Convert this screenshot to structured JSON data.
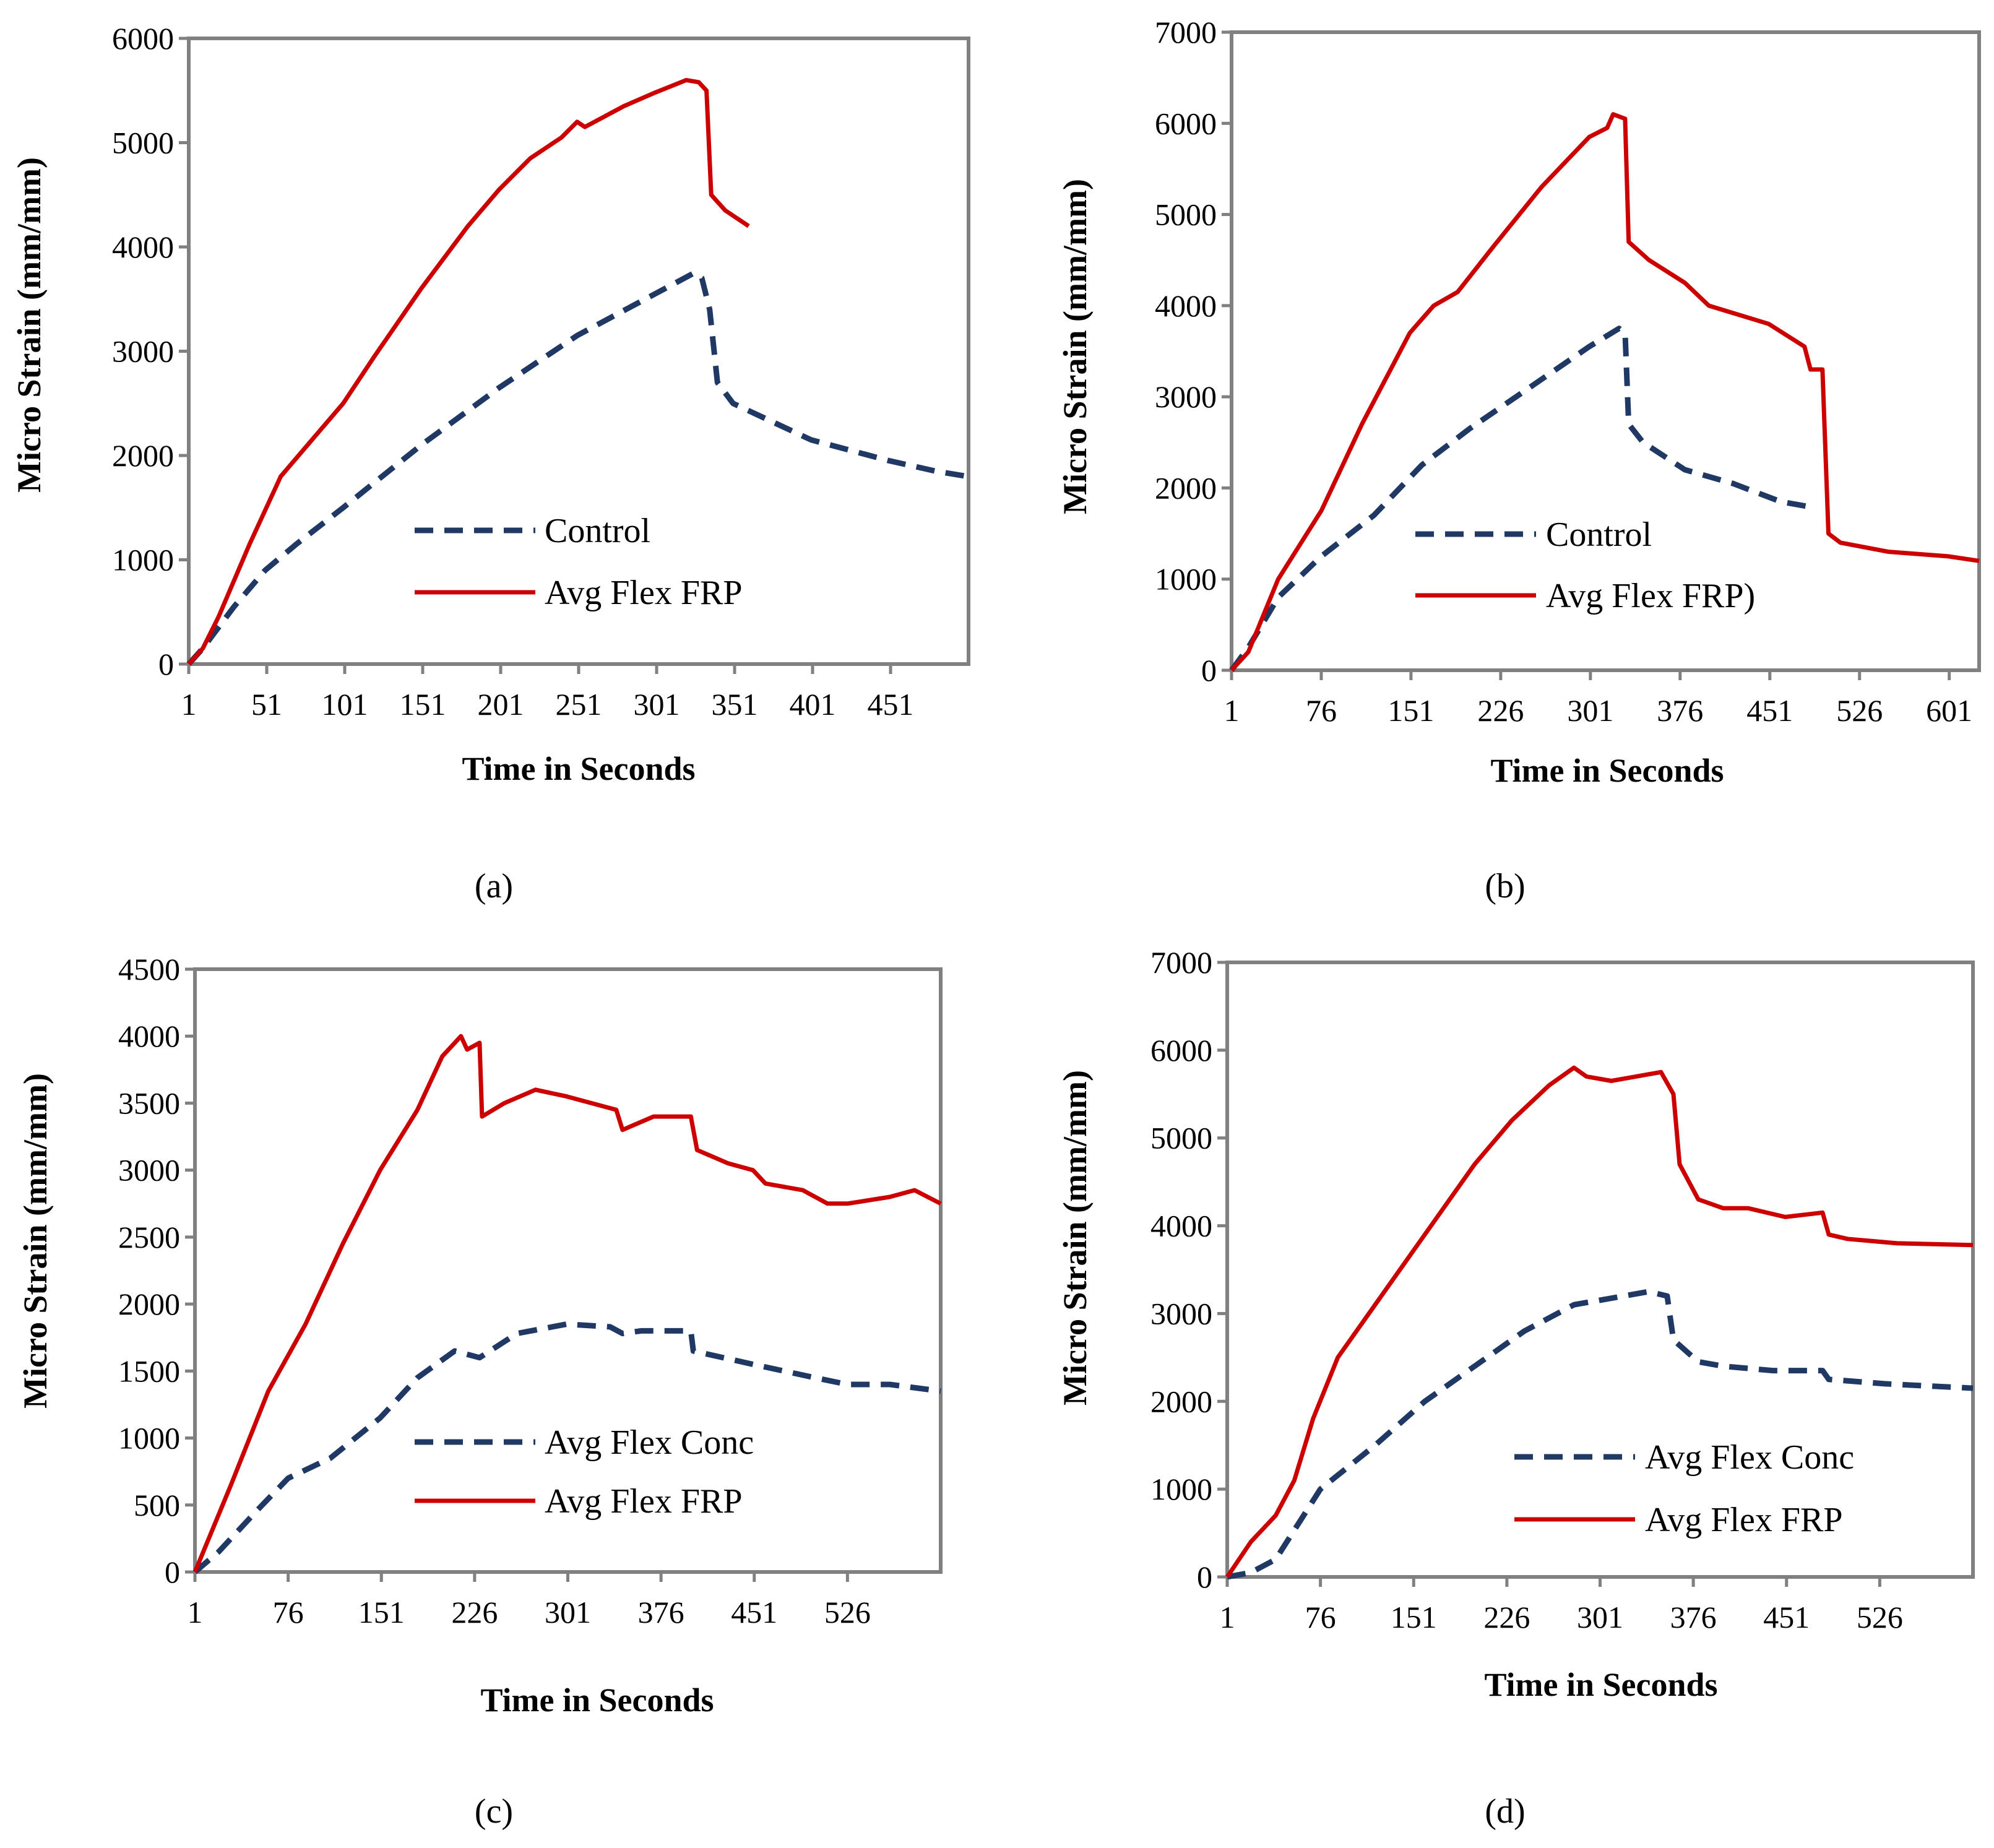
{
  "colors": {
    "control": "#1f3864",
    "frp": "#cc0000",
    "axis": "#808080"
  },
  "chart_data": [
    {
      "panel": "a",
      "caption": "(a)",
      "type": "line",
      "xlabel": "Time in Seconds",
      "ylabel": "Micro Strain (mm/mm)",
      "xlim": [
        1,
        501
      ],
      "ylim": [
        0,
        6000
      ],
      "xticks": [
        "1",
        "51",
        "101",
        "151",
        "201",
        "251",
        "301",
        "351",
        "401",
        "451"
      ],
      "xtick_values": [
        1,
        51,
        101,
        151,
        201,
        251,
        301,
        351,
        401,
        451
      ],
      "yticks": [
        "0",
        "1000",
        "2000",
        "3000",
        "4000",
        "5000",
        "6000"
      ],
      "ytick_values": [
        0,
        1000,
        2000,
        3000,
        4000,
        5000,
        6000
      ],
      "legend": [
        "Control",
        "Avg Flex FRP"
      ],
      "series": [
        {
          "name": "Control",
          "style": "dashed",
          "x": [
            1,
            10,
            30,
            50,
            70,
            100,
            150,
            200,
            250,
            300,
            325,
            330,
            335,
            340,
            350,
            400,
            450,
            480,
            500
          ],
          "y": [
            0,
            150,
            550,
            900,
            1150,
            1500,
            2100,
            2650,
            3150,
            3550,
            3750,
            3700,
            3400,
            2700,
            2500,
            2150,
            1950,
            1850,
            1800
          ]
        },
        {
          "name": "Avg Flex FRP",
          "style": "solid",
          "x": [
            1,
            10,
            20,
            40,
            60,
            80,
            100,
            120,
            150,
            180,
            200,
            220,
            240,
            250,
            255,
            280,
            300,
            320,
            328,
            333,
            336,
            345,
            360
          ],
          "y": [
            0,
            150,
            450,
            1150,
            1800,
            2150,
            2500,
            2950,
            3600,
            4200,
            4550,
            4850,
            5050,
            5200,
            5150,
            5350,
            5480,
            5600,
            5580,
            5500,
            4500,
            4350,
            4200
          ]
        }
      ]
    },
    {
      "panel": "b",
      "caption": "(b)",
      "type": "line",
      "xlabel": "Time in Seconds",
      "ylabel": "Micro Strain (mm/mm)",
      "xlim": [
        1,
        626
      ],
      "ylim": [
        0,
        7000
      ],
      "xticks": [
        "1",
        "76",
        "151",
        "226",
        "301",
        "376",
        "451",
        "526",
        "601"
      ],
      "xtick_values": [
        1,
        76,
        151,
        226,
        301,
        376,
        451,
        526,
        601
      ],
      "yticks": [
        "0",
        "1000",
        "2000",
        "3000",
        "4000",
        "5000",
        "6000",
        "7000"
      ],
      "ytick_values": [
        0,
        1000,
        2000,
        3000,
        4000,
        5000,
        6000,
        7000
      ],
      "legend": [
        "Control",
        "Avg Flex FRP)"
      ],
      "series": [
        {
          "name": "Control",
          "style": "dashed",
          "x": [
            1,
            15,
            40,
            76,
            120,
            160,
            200,
            250,
            300,
            325,
            330,
            333,
            345,
            380,
            420,
            460,
            490
          ],
          "y": [
            0,
            250,
            800,
            1250,
            1700,
            2250,
            2650,
            3100,
            3550,
            3750,
            3700,
            2700,
            2500,
            2200,
            2050,
            1850,
            1780
          ]
        },
        {
          "name": "Avg Flex FRP)",
          "style": "solid",
          "x": [
            1,
            15,
            40,
            76,
            110,
            150,
            170,
            190,
            220,
            260,
            300,
            315,
            320,
            330,
            333,
            350,
            380,
            400,
            450,
            480,
            485,
            495,
            500,
            510,
            550,
            600,
            626
          ],
          "y": [
            0,
            200,
            1000,
            1750,
            2700,
            3700,
            4000,
            4150,
            4650,
            5300,
            5850,
            5950,
            6100,
            6050,
            4700,
            4500,
            4250,
            4000,
            3800,
            3550,
            3300,
            3300,
            1500,
            1400,
            1300,
            1250,
            1200
          ]
        }
      ]
    },
    {
      "panel": "c",
      "caption": "(c)",
      "type": "line",
      "xlabel": "Time in Seconds",
      "ylabel": "Micro Strain (mm/mm)",
      "xlim": [
        1,
        601
      ],
      "ylim": [
        0,
        4500
      ],
      "xticks": [
        "1",
        "76",
        "151",
        "226",
        "301",
        "376",
        "451",
        "526"
      ],
      "xtick_values": [
        1,
        76,
        151,
        226,
        301,
        376,
        451,
        526
      ],
      "yticks": [
        "0",
        "500",
        "1000",
        "1500",
        "2000",
        "2500",
        "3000",
        "3500",
        "4000",
        "4500"
      ],
      "ytick_values": [
        0,
        500,
        1000,
        1500,
        2000,
        2500,
        3000,
        3500,
        4000,
        4500
      ],
      "legend": [
        "Avg Flex Conc",
        "Avg Flex FRP"
      ],
      "series": [
        {
          "name": "Avg Flex Conc",
          "style": "dashed",
          "x": [
            1,
            20,
            50,
            76,
            110,
            150,
            180,
            210,
            230,
            260,
            300,
            335,
            345,
            360,
            400,
            402,
            450,
            500,
            526,
            560,
            601
          ],
          "y": [
            0,
            150,
            450,
            700,
            850,
            1150,
            1450,
            1650,
            1600,
            1780,
            1850,
            1830,
            1780,
            1800,
            1800,
            1650,
            1550,
            1450,
            1400,
            1400,
            1350
          ]
        },
        {
          "name": "Avg Flex FRP",
          "style": "solid",
          "x": [
            1,
            30,
            60,
            90,
            120,
            150,
            180,
            200,
            215,
            220,
            230,
            232,
            250,
            275,
            300,
            340,
            345,
            370,
            400,
            405,
            430,
            450,
            460,
            490,
            510,
            526,
            560,
            580,
            601
          ],
          "y": [
            0,
            650,
            1350,
            1850,
            2450,
            3000,
            3450,
            3850,
            4000,
            3900,
            3950,
            3400,
            3500,
            3600,
            3550,
            3450,
            3300,
            3400,
            3400,
            3150,
            3050,
            3000,
            2900,
            2850,
            2750,
            2750,
            2800,
            2850,
            2750
          ]
        }
      ]
    },
    {
      "panel": "d",
      "caption": "(d)",
      "type": "line",
      "xlabel": "Time in Seconds",
      "ylabel": "Micro Strain (mm/mm)",
      "xlim": [
        1,
        601
      ],
      "ylim": [
        0,
        7000
      ],
      "xticks": [
        "1",
        "76",
        "151",
        "226",
        "301",
        "376",
        "451",
        "526"
      ],
      "xtick_values": [
        1,
        76,
        151,
        226,
        301,
        376,
        451,
        526
      ],
      "yticks": [
        "0",
        "1000",
        "2000",
        "3000",
        "4000",
        "5000",
        "6000",
        "7000"
      ],
      "ytick_values": [
        0,
        1000,
        2000,
        3000,
        4000,
        5000,
        6000,
        7000
      ],
      "legend": [
        "Avg Flex Conc",
        "Avg Flex FRP"
      ],
      "series": [
        {
          "name": "Avg Flex Conc",
          "style": "dashed",
          "x": [
            1,
            20,
            40,
            76,
            120,
            160,
            200,
            240,
            280,
            300,
            340,
            355,
            360,
            380,
            400,
            440,
            480,
            485,
            530,
            601
          ],
          "y": [
            0,
            50,
            200,
            1000,
            1500,
            2000,
            2400,
            2800,
            3100,
            3150,
            3250,
            3200,
            2700,
            2450,
            2400,
            2350,
            2350,
            2250,
            2200,
            2150
          ]
        },
        {
          "name": "Avg Flex FRP",
          "style": "solid",
          "x": [
            1,
            20,
            40,
            55,
            70,
            90,
            120,
            150,
            170,
            200,
            230,
            260,
            280,
            290,
            310,
            330,
            350,
            360,
            365,
            380,
            400,
            420,
            450,
            480,
            485,
            500,
            540,
            601
          ],
          "y": [
            0,
            400,
            700,
            1100,
            1800,
            2500,
            3100,
            3700,
            4100,
            4700,
            5200,
            5600,
            5800,
            5700,
            5650,
            5700,
            5750,
            5500,
            4700,
            4300,
            4200,
            4200,
            4100,
            4150,
            3900,
            3850,
            3800,
            3780
          ]
        }
      ]
    }
  ]
}
